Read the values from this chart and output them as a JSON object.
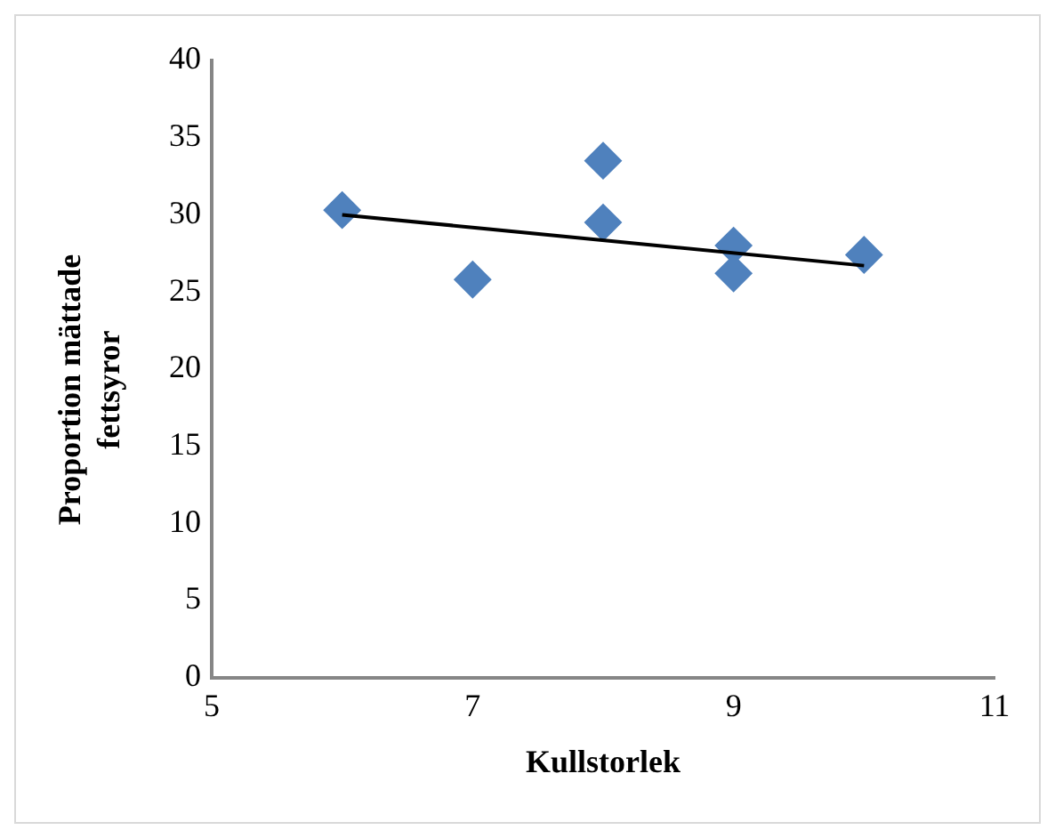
{
  "chart_data": {
    "type": "scatter",
    "xlabel": "Kullstorlek",
    "ylabel": "Proportion mättade fettsyror",
    "xlim": [
      5,
      11
    ],
    "xticks": [
      5,
      7,
      9,
      11
    ],
    "ylim": [
      0,
      40
    ],
    "yticks": [
      0,
      5,
      10,
      15,
      20,
      25,
      30,
      35,
      40
    ],
    "grid": false,
    "legend": false,
    "marker": "diamond",
    "series": [
      {
        "color": "#4f81bd",
        "x": [
          6,
          7,
          8,
          8,
          9,
          9,
          10
        ],
        "values": [
          30.3,
          25.8,
          33.5,
          29.5,
          28,
          26.2,
          27.4
        ]
      },
      {
        "type": "line",
        "marker": "none",
        "color": "#000000",
        "x": [
          6,
          10
        ],
        "values": [
          30,
          26.7
        ]
      }
    ]
  }
}
